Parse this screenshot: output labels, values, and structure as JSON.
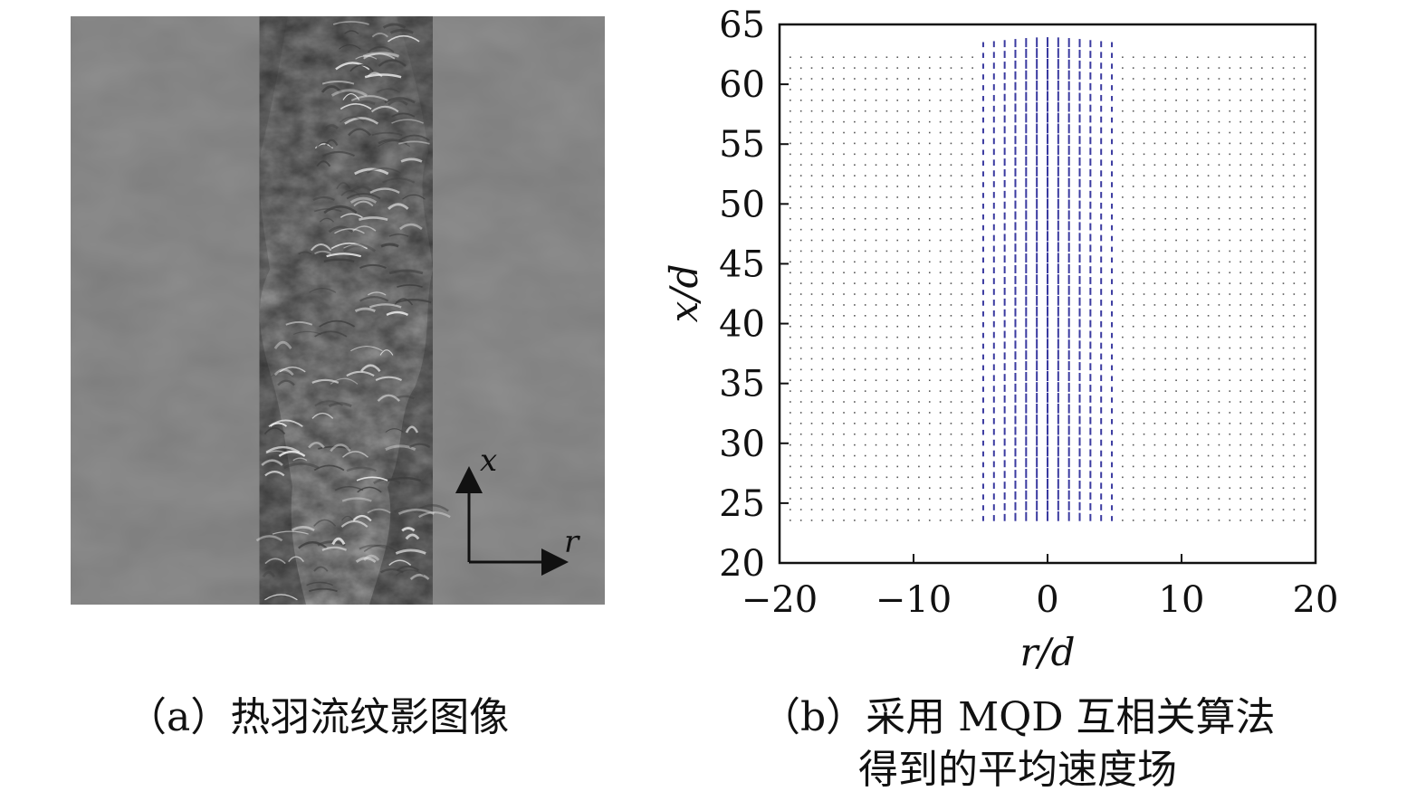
{
  "panel_a": {
    "axis_x_label": "x",
    "axis_r_label": "r",
    "caption": "（a）热羽流纹影图像"
  },
  "panel_b": {
    "caption_line1": "（b）采用 MQD 互相关算法",
    "caption_line2": "得到的平均速度场"
  },
  "chart_data": {
    "type": "quiver",
    "xlabel": "r/d",
    "ylabel": "x/d",
    "xlim": [
      -20,
      20
    ],
    "ylim": [
      20,
      65
    ],
    "xticks": [
      "−20",
      "−10",
      "0",
      "10",
      "20"
    ],
    "yticks": [
      "20",
      "25",
      "30",
      "35",
      "40",
      "45",
      "50",
      "55",
      "60",
      "65"
    ],
    "grid": false,
    "vector_field": {
      "r_range": [
        -20,
        20
      ],
      "r_step": 0.8,
      "x_range": [
        23.5,
        63
      ],
      "x_step": 0.9,
      "core_halfwidth": 5,
      "strong_color": "#3a3aa0",
      "weak_color": "#555555"
    }
  }
}
